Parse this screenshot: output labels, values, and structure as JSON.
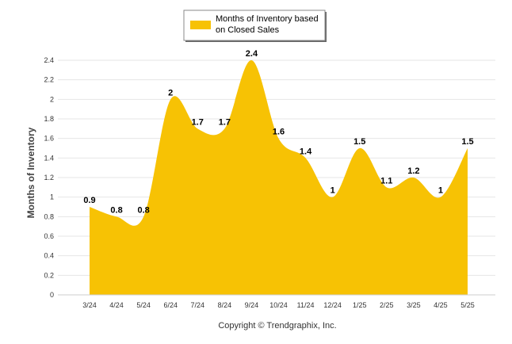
{
  "chart_data": {
    "type": "area",
    "categories": [
      "3/24",
      "4/24",
      "5/24",
      "6/24",
      "7/24",
      "8/24",
      "9/24",
      "10/24",
      "11/24",
      "12/24",
      "1/25",
      "2/25",
      "3/25",
      "4/25",
      "5/25"
    ],
    "series": [
      {
        "name": "Months of Inventory based on Closed Sales",
        "values": [
          0.9,
          0.8,
          0.8,
          2,
          1.7,
          1.7,
          2.4,
          1.6,
          1.4,
          1,
          1.5,
          1.1,
          1.2,
          1,
          1.5
        ],
        "data_labels": [
          "0.9",
          "0.8",
          "0.8",
          "2",
          "1.7",
          "1.7",
          "2.4",
          "1.6",
          "1.4",
          "1",
          "1.5",
          "1.1",
          "1.2",
          "1",
          "1.5"
        ],
        "color": "#F7C204"
      }
    ],
    "ylabel": "Months of Inventory",
    "ylim": [
      0,
      2.4
    ],
    "yticks": [
      "0",
      "0.2",
      "0.4",
      "0.6",
      "0.8",
      "1",
      "1.2",
      "1.4",
      "1.6",
      "1.8",
      "2",
      "2.2",
      "2.4"
    ],
    "grid": true,
    "legend": "top-center",
    "legend_lines": [
      "Months of Inventory based",
      "on Closed Sales"
    ],
    "footer": "Copyright © Trendgraphix, Inc."
  }
}
